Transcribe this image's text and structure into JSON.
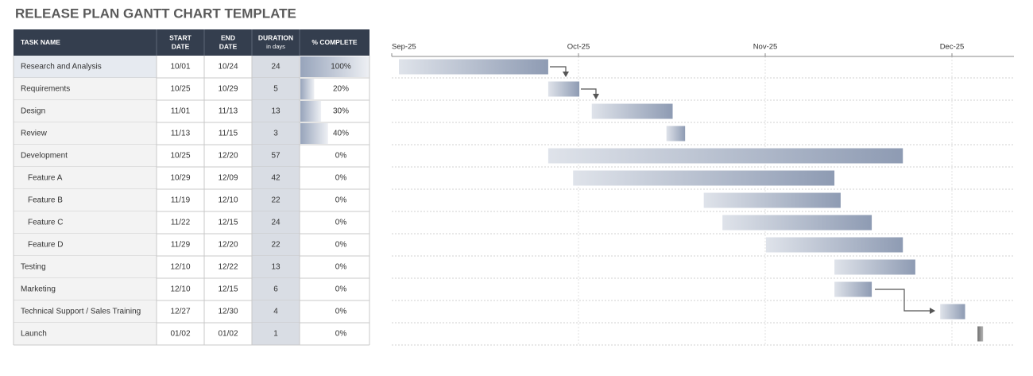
{
  "title": "RELEASE PLAN GANTT CHART TEMPLATE",
  "table": {
    "headers": [
      [
        "TASK NAME"
      ],
      [
        "START",
        "DATE"
      ],
      [
        "END",
        "DATE"
      ],
      [
        "DURATION",
        "in days"
      ],
      [
        "% COMPLETE"
      ]
    ],
    "rows": [
      {
        "task": "Research and Analysis",
        "start": "10/01",
        "end": "10/24",
        "duration": 24,
        "complete": {
          "value": 100,
          "label": "100%"
        },
        "level": 0
      },
      {
        "task": "Requirements",
        "start": "10/25",
        "end": "10/29",
        "duration": 5,
        "complete": {
          "value": 20,
          "label": "20%"
        },
        "level": 0
      },
      {
        "task": "Design",
        "start": "11/01",
        "end": "11/13",
        "duration": 13,
        "complete": {
          "value": 30,
          "label": "30%"
        },
        "level": 0
      },
      {
        "task": "Review",
        "start": "11/13",
        "end": "11/15",
        "duration": 3,
        "complete": {
          "value": 40,
          "label": "40%"
        },
        "level": 0
      },
      {
        "task": "Development",
        "start": "10/25",
        "end": "12/20",
        "duration": 57,
        "complete": {
          "value": 0,
          "label": "0%"
        },
        "level": 0
      },
      {
        "task": "Feature A",
        "start": "10/29",
        "end": "12/09",
        "duration": 42,
        "complete": {
          "value": 0,
          "label": "0%"
        },
        "level": 1
      },
      {
        "task": "Feature B",
        "start": "11/19",
        "end": "12/10",
        "duration": 22,
        "complete": {
          "value": 0,
          "label": "0%"
        },
        "level": 1
      },
      {
        "task": "Feature C",
        "start": "11/22",
        "end": "12/15",
        "duration": 24,
        "complete": {
          "value": 0,
          "label": "0%"
        },
        "level": 1
      },
      {
        "task": "Feature D",
        "start": "11/29",
        "end": "12/20",
        "duration": 22,
        "complete": {
          "value": 0,
          "label": "0%"
        },
        "level": 1
      },
      {
        "task": "Testing",
        "start": "12/10",
        "end": "12/22",
        "duration": 13,
        "complete": {
          "value": 0,
          "label": "0%"
        },
        "level": 0
      },
      {
        "task": "Marketing",
        "start": "12/10",
        "end": "12/15",
        "duration": 6,
        "complete": {
          "value": 0,
          "label": "0%"
        },
        "level": 0
      },
      {
        "task": "Technical Support / Sales Training",
        "start": "12/27",
        "end": "12/30",
        "duration": 4,
        "complete": {
          "value": 0,
          "label": "0%"
        },
        "level": 0
      },
      {
        "task": "Launch",
        "start": "01/02",
        "end": "01/02",
        "duration": 1,
        "complete": {
          "value": 0,
          "label": "0%"
        },
        "level": 0
      }
    ]
  },
  "gantt": {
    "axis_labels": [
      "Sep-25",
      "Oct-25",
      "Nov-25",
      "Dec-25"
    ]
  }
}
